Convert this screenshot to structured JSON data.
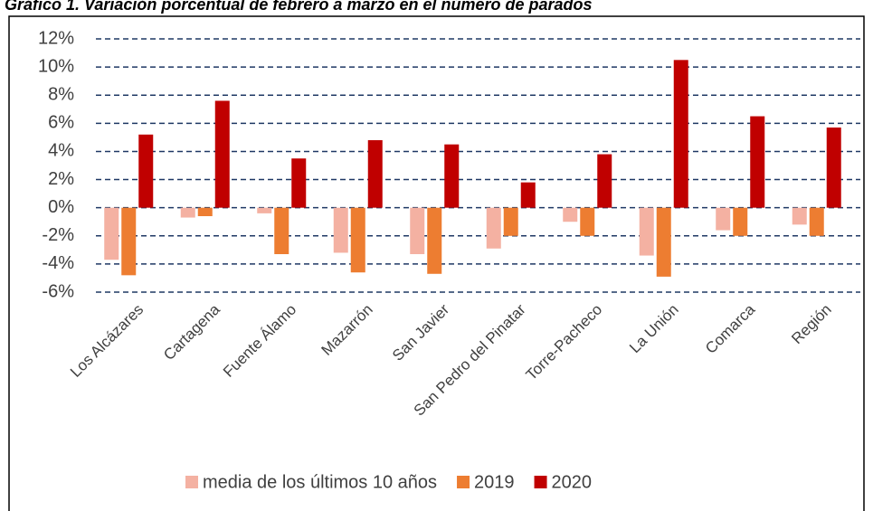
{
  "chart_data": {
    "type": "bar",
    "title": "Gráfico 1. Variación porcentual de febrero a marzo en el número de parados",
    "categories": [
      "Los Alcázares",
      "Cartagena",
      "Fuente Álamo",
      "Mazarrón",
      "San Javier",
      "San Pedro del Pinatar",
      "Torre-Pacheco",
      "La Unión",
      "Comarca",
      "Región"
    ],
    "series": [
      {
        "name": "media de los últimos 10 años",
        "color": "#f4b1a2",
        "values": [
          -3.7,
          -0.7,
          -0.4,
          -3.2,
          -3.3,
          -2.9,
          -1.0,
          -3.4,
          -1.6,
          -1.2
        ]
      },
      {
        "name": "2019",
        "color": "#ed7d31",
        "values": [
          -4.8,
          -0.6,
          -3.3,
          -4.6,
          -4.7,
          -2.0,
          -2.0,
          -4.9,
          -2.0,
          -2.0
        ]
      },
      {
        "name": "2020",
        "color": "#c00000",
        "values": [
          5.2,
          7.6,
          3.5,
          4.8,
          4.5,
          1.8,
          3.8,
          10.5,
          6.5,
          5.7
        ]
      }
    ],
    "ylim": [
      -6,
      12
    ],
    "yticks": [
      {
        "value": -6,
        "label": "-6%"
      },
      {
        "value": -4,
        "label": "-4%"
      },
      {
        "value": -2,
        "label": "-2%"
      },
      {
        "value": 0,
        "label": "0%"
      },
      {
        "value": 2,
        "label": "2%"
      },
      {
        "value": 4,
        "label": "4%"
      },
      {
        "value": 6,
        "label": "6%"
      },
      {
        "value": 8,
        "label": "8%"
      },
      {
        "value": 10,
        "label": "10%"
      },
      {
        "value": 12,
        "label": "12%"
      }
    ],
    "grid": true
  }
}
